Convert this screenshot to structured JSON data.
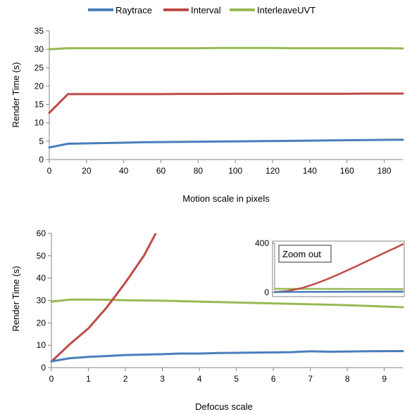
{
  "chart_data": [
    {
      "type": "line",
      "xlabel": "Motion scale in pixels",
      "ylabel": "Render Time (s)",
      "xlim": [
        0,
        190
      ],
      "ylim": [
        0,
        35
      ],
      "xticks": [
        0,
        20,
        40,
        60,
        80,
        100,
        120,
        140,
        160,
        180
      ],
      "yticks": [
        0,
        5,
        10,
        15,
        20,
        25,
        30,
        35
      ],
      "grid": false,
      "legend": "top-center",
      "series": [
        {
          "name": "Raytrace",
          "color": "#4a7ebb",
          "x": [
            0,
            10,
            20,
            30,
            40,
            50,
            60,
            70,
            80,
            90,
            100,
            110,
            120,
            130,
            140,
            150,
            160,
            170,
            180,
            190
          ],
          "y": [
            3.3,
            4.3,
            4.4,
            4.5,
            4.6,
            4.7,
            4.75,
            4.8,
            4.85,
            4.9,
            4.95,
            5.0,
            5.05,
            5.1,
            5.15,
            5.2,
            5.25,
            5.3,
            5.35,
            5.4
          ]
        },
        {
          "name": "Interval",
          "color": "#be4b48",
          "x": [
            0,
            10,
            20,
            30,
            40,
            50,
            60,
            70,
            80,
            90,
            100,
            110,
            120,
            130,
            140,
            150,
            160,
            170,
            180,
            190
          ],
          "y": [
            12.7,
            17.8,
            17.8,
            17.8,
            17.8,
            17.8,
            17.8,
            17.85,
            17.85,
            17.85,
            17.9,
            17.9,
            17.9,
            17.9,
            17.9,
            17.9,
            17.9,
            17.95,
            17.95,
            17.95
          ]
        },
        {
          "name": "InterleaveUVT",
          "color": "#98b954",
          "x": [
            0,
            10,
            20,
            30,
            40,
            50,
            60,
            70,
            80,
            90,
            100,
            110,
            120,
            130,
            140,
            150,
            160,
            170,
            180,
            190
          ],
          "y": [
            30.0,
            30.3,
            30.3,
            30.3,
            30.3,
            30.3,
            30.3,
            30.3,
            30.3,
            30.35,
            30.35,
            30.35,
            30.35,
            30.3,
            30.3,
            30.3,
            30.3,
            30.3,
            30.3,
            30.25
          ]
        }
      ]
    },
    {
      "type": "line",
      "xlabel": "Defocus scale",
      "ylabel": "Render Time (s)",
      "xlim": [
        0,
        9.5
      ],
      "ylim": [
        0,
        60
      ],
      "xticks": [
        0,
        1,
        2,
        3,
        4,
        5,
        6,
        7,
        8,
        9
      ],
      "yticks": [
        0,
        10,
        20,
        30,
        40,
        50,
        60
      ],
      "grid": false,
      "series": [
        {
          "name": "Raytrace",
          "color": "#4a7ebb",
          "x": [
            0,
            0.5,
            1,
            1.5,
            2,
            2.5,
            3,
            3.5,
            4,
            4.5,
            5,
            5.5,
            6,
            6.5,
            7,
            7.5,
            8,
            8.5,
            9,
            9.5
          ],
          "y": [
            2.8,
            4.2,
            4.8,
            5.2,
            5.6,
            5.8,
            6.0,
            6.3,
            6.3,
            6.5,
            6.6,
            6.7,
            6.8,
            6.9,
            7.3,
            7.1,
            7.2,
            7.3,
            7.35,
            7.4
          ]
        },
        {
          "name": "Interval",
          "color": "#be4b48",
          "x": [
            0,
            0.5,
            1,
            1.5,
            2,
            2.5,
            2.95
          ],
          "y": [
            2.7,
            10.5,
            17.5,
            27.0,
            38.0,
            50.0,
            64.0
          ]
        },
        {
          "name": "InterleaveUVT",
          "color": "#98b954",
          "x": [
            0,
            0.5,
            1,
            1.5,
            2,
            2.5,
            3,
            3.5,
            4,
            4.5,
            5,
            5.5,
            6,
            6.5,
            7,
            7.5,
            8,
            8.5,
            9,
            9.5
          ],
          "y": [
            29.5,
            30.4,
            30.4,
            30.3,
            30.1,
            30.0,
            29.9,
            29.7,
            29.5,
            29.3,
            29.1,
            28.9,
            28.7,
            28.5,
            28.3,
            28.1,
            27.9,
            27.6,
            27.3,
            27.0
          ]
        }
      ],
      "inset": {
        "title": "Zoom out",
        "xlim": [
          0,
          9.5
        ],
        "ylim": [
          0,
          400
        ],
        "yticks": [
          0,
          400
        ],
        "series": [
          {
            "name": "Raytrace",
            "color": "#4a7ebb",
            "x": [
              0,
              9.5
            ],
            "y": [
              3,
              7.4
            ]
          },
          {
            "name": "Interval",
            "color": "#be4b48",
            "x": [
              0,
              1,
              2,
              3,
              4,
              5,
              6,
              7,
              8,
              9,
              9.5
            ],
            "y": [
              3,
              12,
              35,
              70,
              112,
              160,
              210,
              262,
              315,
              365,
              392
            ]
          },
          {
            "name": "InterleaveUVT",
            "color": "#98b954",
            "x": [
              0,
              9.5
            ],
            "y": [
              29.5,
              27
            ]
          }
        ]
      }
    }
  ]
}
